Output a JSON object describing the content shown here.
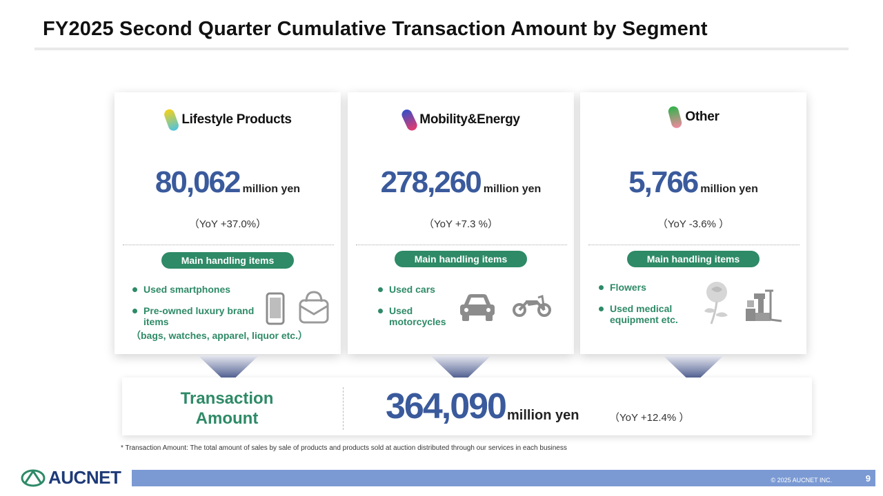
{
  "title": "FY2025 Second Quarter Cumulative Transaction Amount by Segment",
  "segments": [
    {
      "name": "Lifestyle Products",
      "amount": "80,062",
      "unit": "million yen",
      "yoy": "（YoY +37.0%）",
      "pill": "Main handling items",
      "items": [
        "Used smartphones",
        "Pre-owned luxury brand items"
      ],
      "note": "（bags, watches, apparel, liquor etc.）",
      "icons": [
        "smartphone-icon",
        "handbag-icon"
      ]
    },
    {
      "name": "Mobility&Energy",
      "amount": "278,260",
      "unit": "million yen",
      "yoy": "（YoY +7.3 %）",
      "pill": "Main handling items",
      "items": [
        "Used cars",
        "Used motorcycles"
      ],
      "icons": [
        "car-icon",
        "motorcycle-icon"
      ]
    },
    {
      "name": "Other",
      "amount": "5,766",
      "unit": "million yen",
      "yoy": "（YoY -3.6% ）",
      "pill": "Main handling items",
      "items": [
        "Flowers",
        "Used medical equipment etc."
      ],
      "icons": [
        "rose-icon",
        "medical-equipment-icon"
      ]
    }
  ],
  "total": {
    "label": "Transaction Amount",
    "amount": "364,090",
    "unit": "million yen",
    "yoy": "（YoY +12.4% ）"
  },
  "footnote": "* Transaction Amount: The total amount of sales by sale of products and products sold at auction distributed through our services in each business",
  "footer": {
    "brand": "AUCNET",
    "copyright": "© 2025 AUCNET INC.",
    "page": "9"
  },
  "colors": {
    "accent_green": "#2e8a67",
    "amount_blue": "#3a5a9c",
    "footer_bar": "#7b9ad3"
  }
}
